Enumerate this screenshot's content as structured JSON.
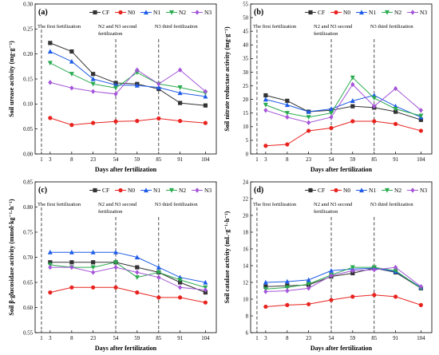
{
  "xlabel": "Days after fertilization",
  "colors": {
    "CF": "#333333",
    "N0": "#e8231f",
    "N1": "#1f5ce8",
    "N2": "#2aab4f",
    "N3": "#a455d8"
  },
  "annotations": {
    "first": "The first fertilization",
    "second_a": "N2 and N3 second",
    "second_b": "fertilization",
    "third": "N3 third fertilization"
  },
  "chart_data": [
    {
      "type": "line",
      "panel_label": "(a)",
      "ylabel": "Soil urease activity (mg·g⁻¹)",
      "xlabel": "Days after fertilization",
      "x_ticks": [
        "1",
        "3",
        "8",
        "23",
        "54",
        "59",
        "85",
        "91",
        "104"
      ],
      "x_points": [
        "3",
        "8",
        "23",
        "54",
        "59",
        "85",
        "91",
        "104"
      ],
      "ylim": [
        0.0,
        0.3
      ],
      "y_ticks": [
        "0.00",
        "0.05",
        "0.10",
        "0.15",
        "0.20",
        "0.25",
        "0.30"
      ],
      "legend": "top",
      "series": [
        {
          "name": "CF",
          "values": [
            0.222,
            0.205,
            0.16,
            0.142,
            0.14,
            0.13,
            0.102,
            0.097
          ]
        },
        {
          "name": "N0",
          "values": [
            0.072,
            0.058,
            0.062,
            0.065,
            0.066,
            0.071,
            0.066,
            0.062
          ]
        },
        {
          "name": "N1",
          "values": [
            0.205,
            0.185,
            0.15,
            0.138,
            0.137,
            0.133,
            0.122,
            0.115
          ]
        },
        {
          "name": "N2",
          "values": [
            0.182,
            0.16,
            0.14,
            0.132,
            0.163,
            0.14,
            0.133,
            0.122
          ]
        },
        {
          "name": "N3",
          "values": [
            0.143,
            0.132,
            0.125,
            0.12,
            0.168,
            0.14,
            0.168,
            0.125
          ]
        }
      ]
    },
    {
      "type": "line",
      "panel_label": "(b)",
      "ylabel": "Soil nitrate reductase activity (mg·g⁻¹)",
      "xlabel": "Days after fertilization",
      "x_ticks": [
        "1",
        "3",
        "8",
        "23",
        "54",
        "59",
        "85",
        "91",
        "104"
      ],
      "x_points": [
        "3",
        "8",
        "23",
        "54",
        "59",
        "85",
        "91",
        "104"
      ],
      "ylim": [
        0,
        55
      ],
      "y_ticks": [
        "0",
        "5",
        "10",
        "15",
        "20",
        "25",
        "30",
        "35",
        "40",
        "45",
        "50",
        "55"
      ],
      "legend": "top",
      "series": [
        {
          "name": "CF",
          "values": [
            21.5,
            19.5,
            15.5,
            16.0,
            17.5,
            17.0,
            15.5,
            12.5
          ]
        },
        {
          "name": "N0",
          "values": [
            3.0,
            3.5,
            8.5,
            9.5,
            12.0,
            12.0,
            11.0,
            8.5
          ]
        },
        {
          "name": "N1",
          "values": [
            20.0,
            18.0,
            15.5,
            16.5,
            19.5,
            21.5,
            17.5,
            13.5
          ]
        },
        {
          "name": "N2",
          "values": [
            18.0,
            15.0,
            13.5,
            15.0,
            28.0,
            20.5,
            16.5,
            14.0
          ]
        },
        {
          "name": "N3",
          "values": [
            16.0,
            13.5,
            11.5,
            13.5,
            25.5,
            17.5,
            24.0,
            16.0
          ]
        }
      ]
    },
    {
      "type": "line",
      "panel_label": "(c)",
      "ylabel": "Soil β-glucosidase activity (mmol·kg⁻¹·h⁻¹)",
      "xlabel": "Days after fertilization",
      "x_ticks": [
        "1",
        "3",
        "8",
        "23",
        "54",
        "59",
        "85",
        "91",
        "104"
      ],
      "x_points": [
        "3",
        "8",
        "23",
        "54",
        "59",
        "85",
        "91",
        "104"
      ],
      "ylim": [
        0.55,
        0.85
      ],
      "y_ticks": [
        "0.55",
        "0.60",
        "0.65",
        "0.70",
        "0.75",
        "0.80",
        "0.85"
      ],
      "legend": "top",
      "series": [
        {
          "name": "CF",
          "values": [
            0.69,
            0.69,
            0.69,
            0.69,
            0.68,
            0.67,
            0.65,
            0.63
          ]
        },
        {
          "name": "N0",
          "values": [
            0.63,
            0.64,
            0.64,
            0.64,
            0.63,
            0.62,
            0.62,
            0.61
          ]
        },
        {
          "name": "N1",
          "values": [
            0.71,
            0.71,
            0.71,
            0.71,
            0.7,
            0.68,
            0.66,
            0.65
          ]
        },
        {
          "name": "N2",
          "values": [
            0.685,
            0.68,
            0.68,
            0.69,
            0.66,
            0.67,
            0.655,
            0.64
          ]
        },
        {
          "name": "N3",
          "values": [
            0.68,
            0.68,
            0.67,
            0.68,
            0.67,
            0.66,
            0.64,
            0.635
          ]
        }
      ]
    },
    {
      "type": "line",
      "panel_label": "(d)",
      "ylabel": "Soil catalase activity (mL·g⁻¹·h⁻¹)",
      "xlabel": "Days after fertilization",
      "x_ticks": [
        "1",
        "3",
        "8",
        "23",
        "54",
        "59",
        "85",
        "91",
        "104"
      ],
      "x_points": [
        "3",
        "8",
        "23",
        "54",
        "59",
        "85",
        "91",
        "104"
      ],
      "ylim": [
        6,
        24
      ],
      "y_ticks": [
        "6",
        "8",
        "10",
        "12",
        "14",
        "16",
        "18",
        "20",
        "22",
        "24"
      ],
      "legend": "top",
      "series": [
        {
          "name": "CF",
          "values": [
            11.5,
            11.6,
            11.7,
            12.7,
            13.1,
            13.7,
            13.2,
            11.3
          ]
        },
        {
          "name": "N0",
          "values": [
            9.1,
            9.3,
            9.4,
            9.9,
            10.3,
            10.5,
            10.3,
            9.3
          ]
        },
        {
          "name": "N1",
          "values": [
            12.0,
            12.1,
            12.3,
            13.4,
            13.6,
            13.7,
            13.3,
            11.4
          ]
        },
        {
          "name": "N2",
          "values": [
            11.2,
            11.4,
            11.8,
            12.9,
            13.8,
            13.8,
            13.4,
            11.3
          ]
        },
        {
          "name": "N3",
          "values": [
            10.9,
            11.0,
            11.3,
            12.8,
            13.4,
            13.5,
            13.8,
            11.5
          ]
        }
      ]
    }
  ]
}
